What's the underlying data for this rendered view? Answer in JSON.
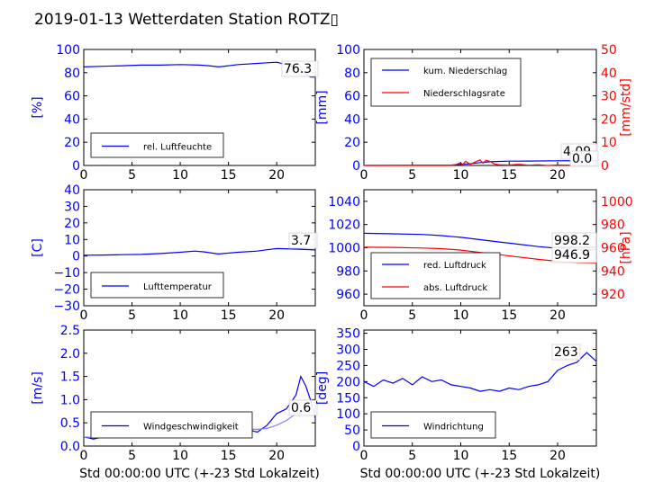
{
  "title": "2019-01-13 Wetterdaten Station ROTZ▯",
  "colors": {
    "blue": "#0000ff",
    "red": "#ff0000",
    "light_blue": "#8080ff",
    "black": "#000000"
  },
  "chart_data": [
    {
      "id": "humidity",
      "type": "line",
      "ylabel": "[%]",
      "xlabel": "",
      "xlim": [
        0,
        24
      ],
      "ylim": [
        0,
        100
      ],
      "xticks": [
        "0",
        "5",
        "10",
        "15",
        "20"
      ],
      "yticks": [
        "0",
        "20",
        "40",
        "60",
        "80",
        "100"
      ],
      "legend": [
        "rel. Luftfeuchte"
      ],
      "legend_position": "lower-left",
      "annotations": [
        "76.3"
      ],
      "series": [
        {
          "name": "rel. Luftfeuchte",
          "color": "#0000ff",
          "x": [
            0,
            2,
            4,
            6,
            8,
            10,
            12,
            13,
            14,
            15,
            16,
            18,
            19,
            20,
            21,
            22,
            23,
            23.5,
            24
          ],
          "y": [
            85,
            85.5,
            86,
            86.5,
            86.5,
            87,
            86.5,
            86,
            85,
            86,
            87,
            88,
            88.5,
            89,
            87,
            85,
            79,
            76.3,
            76.3
          ]
        }
      ]
    },
    {
      "id": "precipitation",
      "type": "line",
      "ylabel": "[mm]",
      "y2label": "[mm/std]",
      "xlabel": "",
      "xlim": [
        0,
        24
      ],
      "ylim": [
        0,
        100
      ],
      "y2lim": [
        0,
        50
      ],
      "xticks": [
        "0",
        "5",
        "10",
        "15",
        "20"
      ],
      "yticks": [
        "0",
        "20",
        "40",
        "60",
        "80",
        "100"
      ],
      "y2ticks": [
        "0",
        "10",
        "20",
        "30",
        "40",
        "50"
      ],
      "legend": [
        "kum. Niederschlag",
        "Niederschlagsrate"
      ],
      "legend_position": "upper-left",
      "annotations": [
        "4.09",
        "0.0"
      ],
      "series": [
        {
          "name": "kum. Niederschlag",
          "color": "#0000ff",
          "axis": "left",
          "x": [
            0,
            9,
            10,
            11,
            12,
            13,
            14,
            15,
            17,
            20,
            22,
            24
          ],
          "y": [
            0,
            0.3,
            1,
            1.5,
            2.5,
            3.2,
            3.5,
            3.7,
            3.8,
            4.0,
            4.09,
            4.09
          ]
        },
        {
          "name": "Niederschlagsrate",
          "color": "#ff0000",
          "axis": "right",
          "x": [
            0,
            9,
            9.5,
            10,
            10.2,
            10.5,
            11,
            11.5,
            12,
            12.3,
            12.6,
            13,
            13.5,
            14,
            15,
            16,
            17,
            18,
            19,
            20,
            24
          ],
          "y": [
            0,
            0,
            0.4,
            1.2,
            0.3,
            1.8,
            0.5,
            1.5,
            2.4,
            1.0,
            2.2,
            1.8,
            0.6,
            0.3,
            0.2,
            0.5,
            0.1,
            0.3,
            0,
            0.2,
            0
          ]
        }
      ]
    },
    {
      "id": "temperature",
      "type": "line",
      "ylabel": "[C]",
      "xlabel": "",
      "xlim": [
        0,
        24
      ],
      "ylim": [
        -30,
        40
      ],
      "xticks": [
        "0",
        "5",
        "10",
        "15",
        "20"
      ],
      "yticks": [
        "−30",
        "−20",
        "−10",
        "0",
        "10",
        "20",
        "30",
        "40"
      ],
      "legend": [
        "Lufttemperatur"
      ],
      "legend_position": "lower-left",
      "annotations": [
        "3.7"
      ],
      "series": [
        {
          "name": "Lufttemperatur",
          "color": "#0000ff",
          "x": [
            0,
            2,
            4,
            6,
            8,
            10,
            11.5,
            12.5,
            14,
            14.5,
            16,
            18,
            19,
            20,
            22,
            24
          ],
          "y": [
            0.5,
            0.6,
            0.8,
            1,
            1.5,
            2.3,
            3,
            2.5,
            1.2,
            1.5,
            2.3,
            3.0,
            3.8,
            4.5,
            4.2,
            3.7
          ]
        }
      ]
    },
    {
      "id": "pressure",
      "type": "line",
      "ylabel": "",
      "y2label": "[hPa]",
      "xlabel": "",
      "xlim": [
        0,
        24
      ],
      "ylim": [
        950,
        1050
      ],
      "y2lim": [
        910,
        1010
      ],
      "xticks": [
        "0",
        "5",
        "10",
        "15",
        "20"
      ],
      "yticks": [
        "960",
        "980",
        "1000",
        "1020",
        "1040"
      ],
      "y2ticks": [
        "920",
        "940",
        "960",
        "980",
        "1000"
      ],
      "legend": [
        "red. Luftdruck",
        "abs. Luftdruck"
      ],
      "legend_position": "lower-left",
      "annotations": [
        "998.2",
        "946.9"
      ],
      "series": [
        {
          "name": "red. Luftdruck",
          "color": "#0000ff",
          "axis": "left",
          "x": [
            0,
            3,
            6,
            8,
            10,
            12,
            14,
            16,
            18,
            20,
            22,
            24
          ],
          "y": [
            1012.5,
            1012,
            1011.5,
            1010.5,
            1009,
            1007,
            1005,
            1003,
            1001,
            999.5,
            998.5,
            998.2
          ]
        },
        {
          "name": "abs. Luftdruck",
          "color": "#ff0000",
          "axis": "right",
          "x": [
            0,
            3,
            6,
            8,
            10,
            12,
            14,
            16,
            18,
            20,
            22,
            24
          ],
          "y": [
            960.5,
            960.3,
            959.8,
            959.2,
            958,
            956,
            954,
            952,
            950,
            948.3,
            947.2,
            946.9
          ]
        }
      ]
    },
    {
      "id": "windspeed",
      "type": "line",
      "ylabel": "[m/s]",
      "xlabel": "Std 00:00:00 UTC (+-23 Std Lokalzeit)",
      "xlim": [
        0,
        24
      ],
      "ylim": [
        0,
        2.5
      ],
      "xticks": [
        "0",
        "5",
        "10",
        "15",
        "20"
      ],
      "yticks": [
        "0.0",
        "0.5",
        "1.0",
        "1.5",
        "2.0",
        "2.5"
      ],
      "legend": [
        "Windgeschwindigkeit"
      ],
      "legend_position": "lower-left",
      "annotations": [
        "0.6"
      ],
      "series": [
        {
          "name": "Windgeschwindigkeit",
          "color": "#0000ff",
          "x": [
            0,
            1,
            2,
            3,
            4,
            5,
            6,
            7,
            8,
            9,
            10,
            11,
            12,
            13,
            14,
            15,
            16,
            17,
            18,
            19,
            20,
            21,
            22,
            22.5,
            23,
            23.5,
            24
          ],
          "y": [
            0.2,
            0.15,
            0.2,
            0.25,
            0.2,
            0.3,
            0.25,
            0.3,
            0.35,
            0.3,
            0.5,
            0.45,
            0.6,
            0.5,
            0.45,
            0.4,
            0.5,
            0.35,
            0.3,
            0.45,
            0.7,
            0.8,
            1.1,
            1.5,
            1.3,
            1.0,
            0.6
          ]
        },
        {
          "name": "",
          "color": "#8080ff",
          "x": [
            0,
            1,
            2,
            3,
            4,
            5,
            6,
            7,
            8,
            9,
            10,
            11,
            12,
            13,
            14,
            15,
            16,
            17,
            18,
            19,
            20,
            21,
            22,
            23,
            24
          ],
          "y": [
            0.2,
            0.18,
            0.2,
            0.22,
            0.25,
            0.28,
            0.3,
            0.32,
            0.35,
            0.35,
            0.38,
            0.4,
            0.42,
            0.42,
            0.4,
            0.4,
            0.38,
            0.36,
            0.36,
            0.38,
            0.45,
            0.55,
            0.7,
            0.75,
            0.7
          ]
        }
      ]
    },
    {
      "id": "winddirection",
      "type": "line",
      "ylabel": "[deg]",
      "xlabel": "Std 00:00:00 UTC (+-23 Std Lokalzeit)",
      "xlim": [
        0,
        24
      ],
      "ylim": [
        0,
        360
      ],
      "xticks": [
        "0",
        "5",
        "10",
        "15",
        "20"
      ],
      "yticks": [
        "0",
        "50",
        "100",
        "150",
        "200",
        "250",
        "300",
        "350"
      ],
      "legend": [
        "Windrichtung"
      ],
      "legend_position": "lower-left",
      "annotations": [
        "263"
      ],
      "series": [
        {
          "name": "Windrichtung",
          "color": "#0000ff",
          "x": [
            0,
            1,
            2,
            3,
            4,
            5,
            6,
            7,
            8,
            9,
            10,
            11,
            12,
            13,
            14,
            15,
            16,
            17,
            18,
            19,
            20,
            21,
            22,
            23,
            24
          ],
          "y": [
            200,
            185,
            205,
            195,
            210,
            190,
            215,
            200,
            205,
            190,
            185,
            180,
            170,
            175,
            170,
            180,
            175,
            185,
            190,
            200,
            235,
            250,
            260,
            290,
            263
          ]
        }
      ]
    }
  ]
}
